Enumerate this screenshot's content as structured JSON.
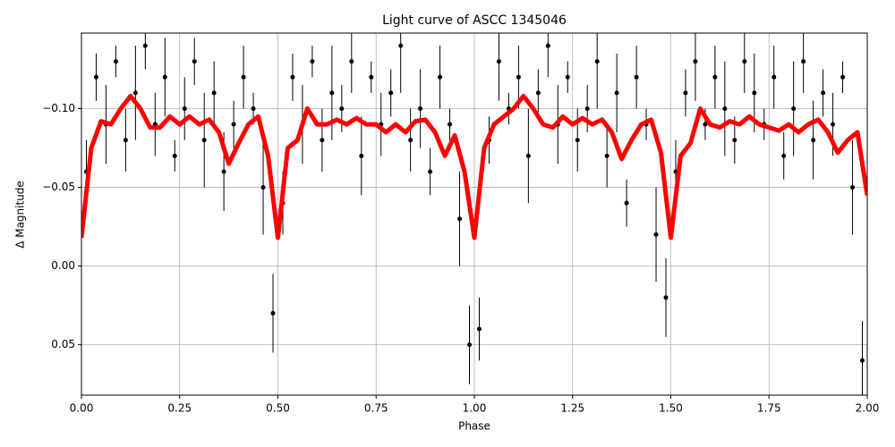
{
  "chart_data": {
    "type": "scatter",
    "title": "Light curve of ASCC 1345046",
    "xlabel": "Phase",
    "ylabel": "Δ Magnitude",
    "xlim": [
      0,
      2
    ],
    "ylim": [
      0.082,
      -0.148
    ],
    "xticks": [
      {
        "value": 0,
        "label": "0.00"
      },
      {
        "value": 0.25,
        "label": "0.25"
      },
      {
        "value": 0.5,
        "label": "0.50"
      },
      {
        "value": 0.75,
        "label": "0.75"
      },
      {
        "value": 1,
        "label": "1.00"
      },
      {
        "value": 1.25,
        "label": "1.25"
      },
      {
        "value": 1.5,
        "label": "1.50"
      },
      {
        "value": 1.75,
        "label": "1.75"
      },
      {
        "value": 2,
        "label": "2.00"
      }
    ],
    "yticks": [
      {
        "value": -0.1,
        "label": "−0.10"
      },
      {
        "value": -0.05,
        "label": "−0.05"
      },
      {
        "value": 0,
        "label": "0.00"
      },
      {
        "value": 0.05,
        "label": "0.05"
      }
    ],
    "grid": true,
    "points": {
      "color": "#000000",
      "x": [
        0.0125,
        0.0375,
        0.0625,
        0.0875,
        0.1125,
        0.1375,
        0.1625,
        0.1875,
        0.2125,
        0.2375,
        0.2625,
        0.2875,
        0.3125,
        0.3375,
        0.3625,
        0.3875,
        0.4125,
        0.4375,
        0.4625,
        0.4875,
        0.5125,
        0.5375,
        0.5625,
        0.5875,
        0.6125,
        0.6375,
        0.6625,
        0.6875,
        0.7125,
        0.7375,
        0.7625,
        0.7875,
        0.8125,
        0.8375,
        0.8625,
        0.8875,
        0.9125,
        0.9375,
        0.9625,
        0.9875,
        1.0125,
        1.0375,
        1.0625,
        1.0875,
        1.1125,
        1.1375,
        1.1625,
        1.1875,
        1.2125,
        1.2375,
        1.2625,
        1.2875,
        1.3125,
        1.3375,
        1.3625,
        1.3875,
        1.4125,
        1.4375,
        1.4625,
        1.4875,
        1.5125,
        1.5375,
        1.5625,
        1.5875,
        1.6125,
        1.6375,
        1.6625,
        1.6875,
        1.7125,
        1.7375,
        1.7625,
        1.7875,
        1.8125,
        1.8375,
        1.8625,
        1.8875,
        1.9125,
        1.9375,
        1.9625,
        1.9875
      ],
      "y": [
        -0.06,
        -0.12,
        -0.09,
        -0.13,
        -0.08,
        -0.11,
        -0.14,
        -0.09,
        -0.12,
        -0.07,
        -0.1,
        -0.13,
        -0.08,
        -0.11,
        -0.06,
        -0.09,
        -0.12,
        -0.1,
        -0.05,
        0.03,
        -0.04,
        -0.12,
        -0.09,
        -0.13,
        -0.08,
        -0.11,
        -0.1,
        -0.13,
        -0.07,
        -0.12,
        -0.09,
        -0.11,
        -0.14,
        -0.08,
        -0.1,
        -0.06,
        -0.12,
        -0.09,
        -0.03,
        0.05,
        0.04,
        -0.08,
        -0.13,
        -0.1,
        -0.12,
        -0.07,
        -0.11,
        -0.14,
        -0.09,
        -0.12,
        -0.08,
        -0.1,
        -0.13,
        -0.07,
        -0.11,
        -0.04,
        -0.12,
        -0.09,
        -0.02,
        0.02,
        -0.06,
        -0.11,
        -0.13,
        -0.09,
        -0.12,
        -0.1,
        -0.08,
        -0.13,
        -0.11,
        -0.09,
        -0.12,
        -0.07,
        -0.1,
        -0.13,
        -0.08,
        -0.11,
        -0.09,
        -0.12,
        -0.05,
        0.06
      ],
      "err": [
        0.02,
        0.015,
        0.025,
        0.01,
        0.02,
        0.03,
        0.015,
        0.02,
        0.025,
        0.01,
        0.02,
        0.015,
        0.03,
        0.02,
        0.025,
        0.015,
        0.02,
        0.01,
        0.03,
        0.025,
        0.02,
        0.015,
        0.025,
        0.01,
        0.02,
        0.03,
        0.015,
        0.02,
        0.025,
        0.01,
        0.02,
        0.015,
        0.03,
        0.02,
        0.025,
        0.015,
        0.02,
        0.01,
        0.03,
        0.025,
        0.02,
        0.015,
        0.025,
        0.01,
        0.02,
        0.03,
        0.015,
        0.02,
        0.025,
        0.01,
        0.02,
        0.015,
        0.03,
        0.02,
        0.025,
        0.015,
        0.02,
        0.01,
        0.03,
        0.025,
        0.02,
        0.015,
        0.025,
        0.01,
        0.02,
        0.03,
        0.015,
        0.02,
        0.025,
        0.01,
        0.02,
        0.015,
        0.03,
        0.02,
        0.025,
        0.015,
        0.02,
        0.01,
        0.03,
        0.025
      ]
    },
    "curve": {
      "color": "#ff0000",
      "x": [
        0,
        0.025,
        0.05,
        0.075,
        0.1,
        0.125,
        0.15,
        0.175,
        0.2,
        0.225,
        0.25,
        0.275,
        0.3,
        0.325,
        0.35,
        0.375,
        0.4,
        0.425,
        0.45,
        0.475,
        0.5,
        0.525,
        0.55,
        0.575,
        0.6,
        0.625,
        0.65,
        0.675,
        0.7,
        0.725,
        0.75,
        0.775,
        0.8,
        0.825,
        0.85,
        0.875,
        0.9,
        0.925,
        0.95,
        0.975,
        1,
        1.025,
        1.05,
        1.075,
        1.1,
        1.125,
        1.15,
        1.175,
        1.2,
        1.225,
        1.25,
        1.275,
        1.3,
        1.325,
        1.35,
        1.375,
        1.4,
        1.425,
        1.45,
        1.475,
        1.5,
        1.525,
        1.55,
        1.575,
        1.6,
        1.625,
        1.65,
        1.675,
        1.7,
        1.725,
        1.75,
        1.775,
        1.8,
        1.825,
        1.85,
        1.875,
        1.9,
        1.925,
        1.95,
        1.975,
        2
      ],
      "y": [
        -0.018,
        -0.075,
        -0.092,
        -0.09,
        -0.1,
        -0.108,
        -0.1,
        -0.088,
        -0.088,
        -0.095,
        -0.09,
        -0.095,
        -0.09,
        -0.093,
        -0.085,
        -0.065,
        -0.078,
        -0.09,
        -0.095,
        -0.07,
        -0.018,
        -0.075,
        -0.08,
        -0.1,
        -0.09,
        -0.09,
        -0.093,
        -0.09,
        -0.094,
        -0.09,
        -0.09,
        -0.085,
        -0.09,
        -0.085,
        -0.092,
        -0.093,
        -0.085,
        -0.07,
        -0.083,
        -0.06,
        -0.018,
        -0.075,
        -0.09,
        -0.095,
        -0.1,
        -0.108,
        -0.1,
        -0.09,
        -0.088,
        -0.095,
        -0.09,
        -0.094,
        -0.09,
        -0.093,
        -0.085,
        -0.068,
        -0.08,
        -0.09,
        -0.093,
        -0.072,
        -0.018,
        -0.07,
        -0.078,
        -0.1,
        -0.09,
        -0.088,
        -0.092,
        -0.09,
        -0.095,
        -0.09,
        -0.088,
        -0.086,
        -0.09,
        -0.085,
        -0.09,
        -0.093,
        -0.085,
        -0.072,
        -0.08,
        -0.085,
        -0.045
      ]
    }
  }
}
